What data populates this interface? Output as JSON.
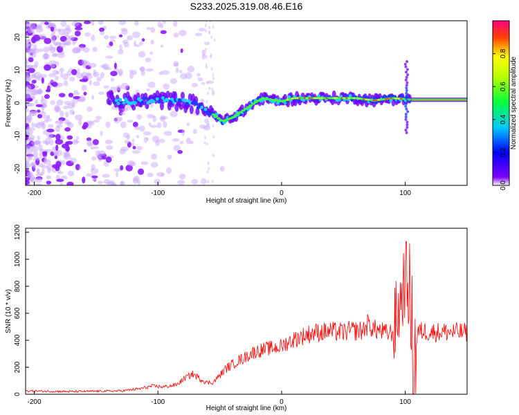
{
  "title": "S233.2025.319.08.46.E16",
  "chart_data": [
    {
      "type": "heatmap",
      "xlabel": "Height of straight line (km)",
      "ylabel": "Frequency (Hz)",
      "xlim": [
        -207,
        150
      ],
      "ylim": [
        -25,
        25
      ],
      "xticks": [
        -200,
        -100,
        0,
        100
      ],
      "yticks": [
        -20,
        -10,
        0,
        10,
        20
      ],
      "colorbar": {
        "label": "Normalized spectral amplitude",
        "range": [
          0,
          1
        ],
        "ticks": [
          0.0,
          0.2,
          0.4,
          0.6,
          0.8
        ]
      },
      "ridge": {
        "description_points": [
          [
            -140,
            0.5
          ],
          [
            -120,
            0.5
          ],
          [
            -100,
            1.0
          ],
          [
            -80,
            0.5
          ],
          [
            -65,
            -1.0
          ],
          [
            -55,
            -3.5
          ],
          [
            -48,
            -5.5
          ],
          [
            -40,
            -4.5
          ],
          [
            -30,
            -2.0
          ],
          [
            -20,
            0.5
          ],
          [
            -15,
            1.5
          ],
          [
            -8,
            1.0
          ],
          [
            0,
            0.5
          ],
          [
            10,
            1.5
          ],
          [
            30,
            1.5
          ],
          [
            60,
            1.5
          ],
          [
            75,
            0.8
          ],
          [
            90,
            1.5
          ],
          [
            100,
            1.2
          ],
          [
            104,
            1.0
          ],
          [
            150,
            1.0
          ]
        ]
      }
    },
    {
      "type": "line",
      "xlabel": "Height of straight line (km)",
      "ylabel": "SNR (10 * v/v)",
      "xlim": [
        -207,
        150
      ],
      "ylim": [
        0,
        1230
      ],
      "xticks": [
        -200,
        -100,
        0,
        100
      ],
      "yticks": [
        0,
        200,
        400,
        600,
        800,
        1000,
        1200
      ],
      "color": "#ff0000",
      "series": [
        {
          "x": [
            -207,
            -190,
            -170,
            -150,
            -130,
            -115,
            -105,
            -95,
            -85,
            -78,
            -72,
            -66,
            -60,
            -55,
            -50,
            -45,
            -40,
            -35,
            -30,
            -25,
            -20,
            -15,
            -10,
            -5,
            0,
            5,
            10,
            15,
            20,
            25,
            30,
            40,
            50,
            55,
            60,
            65,
            70,
            75,
            80,
            85,
            90,
            95,
            97,
            100,
            103,
            105,
            107,
            110,
            115,
            120,
            130,
            140,
            150
          ],
          "y": [
            25,
            22,
            20,
            22,
            25,
            40,
            60,
            55,
            70,
            120,
            150,
            115,
            85,
            90,
            140,
            190,
            220,
            250,
            270,
            300,
            320,
            330,
            340,
            345,
            355,
            385,
            405,
            425,
            440,
            455,
            460,
            465,
            460,
            470,
            470,
            470,
            520,
            480,
            470,
            450,
            460,
            640,
            720,
            880,
            760,
            470,
            180,
            460,
            470,
            460,
            462,
            460,
            458
          ]
        }
      ]
    }
  ]
}
